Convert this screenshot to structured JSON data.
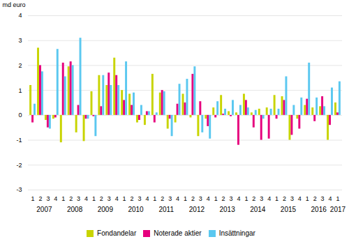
{
  "chart_data": {
    "type": "bar",
    "ylabel": "md euro",
    "ylim": [
      -3,
      4
    ],
    "yticks": [
      -3,
      -2,
      -1,
      0,
      1,
      2,
      3,
      4
    ],
    "grid": true,
    "legend": "bottom",
    "annotations": [
      "2007",
      "2008",
      "2009",
      "2010",
      "2011",
      "2012",
      "2013",
      "2014",
      "2015",
      "2016",
      "2017"
    ],
    "categories": [
      "1",
      "2",
      "3",
      "4",
      "1",
      "2",
      "3",
      "4",
      "1",
      "2",
      "3",
      "4",
      "1",
      "2",
      "3",
      "4",
      "1",
      "2",
      "3",
      "4",
      "1",
      "2",
      "3",
      "4",
      "1",
      "2",
      "3",
      "4",
      "1",
      "2",
      "3",
      "4",
      "1",
      "2",
      "3",
      "4",
      "1",
      "2",
      "3",
      "4",
      "1"
    ],
    "series": [
      {
        "name": "Fondandelar",
        "color": "#c8d400",
        "values": [
          1.2,
          2.7,
          -0.2,
          -0.15,
          -1.1,
          1.95,
          -0.7,
          -1.05,
          0.95,
          1.6,
          1.2,
          2.3,
          1.0,
          0.85,
          -0.3,
          -0.4,
          1.65,
          0.9,
          -0.55,
          -0.3,
          0.85,
          -0.1,
          -0.85,
          -0.15,
          0.3,
          0.8,
          0.15,
          0.1,
          0.85,
          0.1,
          0.25,
          0.3,
          0.8,
          0.75,
          -1.0,
          -0.15,
          0.4,
          0.3,
          0.35,
          -1.0,
          0.5
        ]
      },
      {
        "name": "Noterade aktier",
        "color": "#e6007e",
        "values": [
          -0.3,
          2.0,
          -0.5,
          -0.1,
          2.1,
          2.15,
          0.4,
          -0.15,
          -0.05,
          0.35,
          1.7,
          1.6,
          0.6,
          0.4,
          -0.2,
          0.15,
          -0.3,
          1.0,
          -0.15,
          0.45,
          0.5,
          1.65,
          0.55,
          -0.45,
          -0.1,
          0.05,
          -0.05,
          -1.2,
          0.6,
          -0.5,
          -1.0,
          -0.95,
          -0.15,
          0.6,
          -0.8,
          -0.55,
          0.65,
          -0.25,
          0.75,
          -0.4,
          0.1
        ]
      },
      {
        "name": "Insättningar",
        "color": "#5bc8f0",
        "values": [
          0.45,
          1.75,
          -0.55,
          2.65,
          1.55,
          2.0,
          3.1,
          -0.15,
          -0.85,
          1.6,
          1.2,
          1.2,
          2.15,
          0.9,
          0.4,
          0.15,
          0.1,
          0.95,
          -0.85,
          1.25,
          1.45,
          1.95,
          -0.7,
          -0.95,
          0.55,
          0.25,
          0.6,
          0.4,
          0.3,
          0.2,
          -0.15,
          0.25,
          0.25,
          1.55,
          0.4,
          0.7,
          2.1,
          0.7,
          0.35,
          1.1,
          1.35
        ]
      }
    ]
  }
}
